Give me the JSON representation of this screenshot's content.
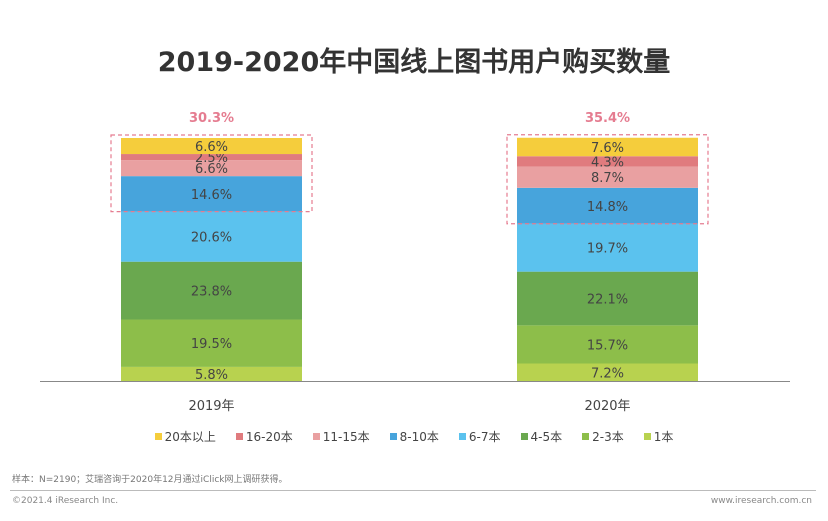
{
  "chart_data": {
    "type": "bar",
    "stacked": true,
    "title": "2019-2020年中国线上图书用户购买数量",
    "categories": [
      "2019年",
      "2020年"
    ],
    "series": [
      {
        "name": "1本",
        "values": [
          5.8,
          7.2
        ],
        "color": "#b8d24f"
      },
      {
        "name": "2-3本",
        "values": [
          19.5,
          15.7
        ],
        "color": "#8dbe4a"
      },
      {
        "name": "4-5本",
        "values": [
          23.8,
          22.1
        ],
        "color": "#6aa84f"
      },
      {
        "name": "6-7本",
        "values": [
          20.6,
          19.7
        ],
        "color": "#5bc2ee"
      },
      {
        "name": "8-10本",
        "values": [
          14.6,
          14.8
        ],
        "color": "#47a4dc"
      },
      {
        "name": "11-15本",
        "values": [
          6.6,
          8.7
        ],
        "color": "#e9a0a1"
      },
      {
        "name": "16-20本",
        "values": [
          2.5,
          4.3
        ],
        "color": "#e07b7e"
      },
      {
        "name": "20本以上",
        "values": [
          6.6,
          7.6
        ],
        "color": "#f5cd3c"
      }
    ],
    "data_label_suffix": "%",
    "annotations": [
      "30.3%",
      "35.4%"
    ],
    "annotation_color": "#e57c90",
    "legend_order": [
      "20本以上",
      "16-20本",
      "11-15本",
      "8-10本",
      "6-7本",
      "4-5本",
      "2-3本",
      "1本"
    ],
    "legend_position": "bottom",
    "ylim": [
      0,
      100
    ],
    "grid": false
  },
  "footer": {
    "note": "样本：N=2190；艾瑞咨询于2020年12月通过iClick网上调研获得。",
    "copyright": "©2021.4 iResearch Inc.",
    "site": "www.iresearch.com.cn"
  }
}
